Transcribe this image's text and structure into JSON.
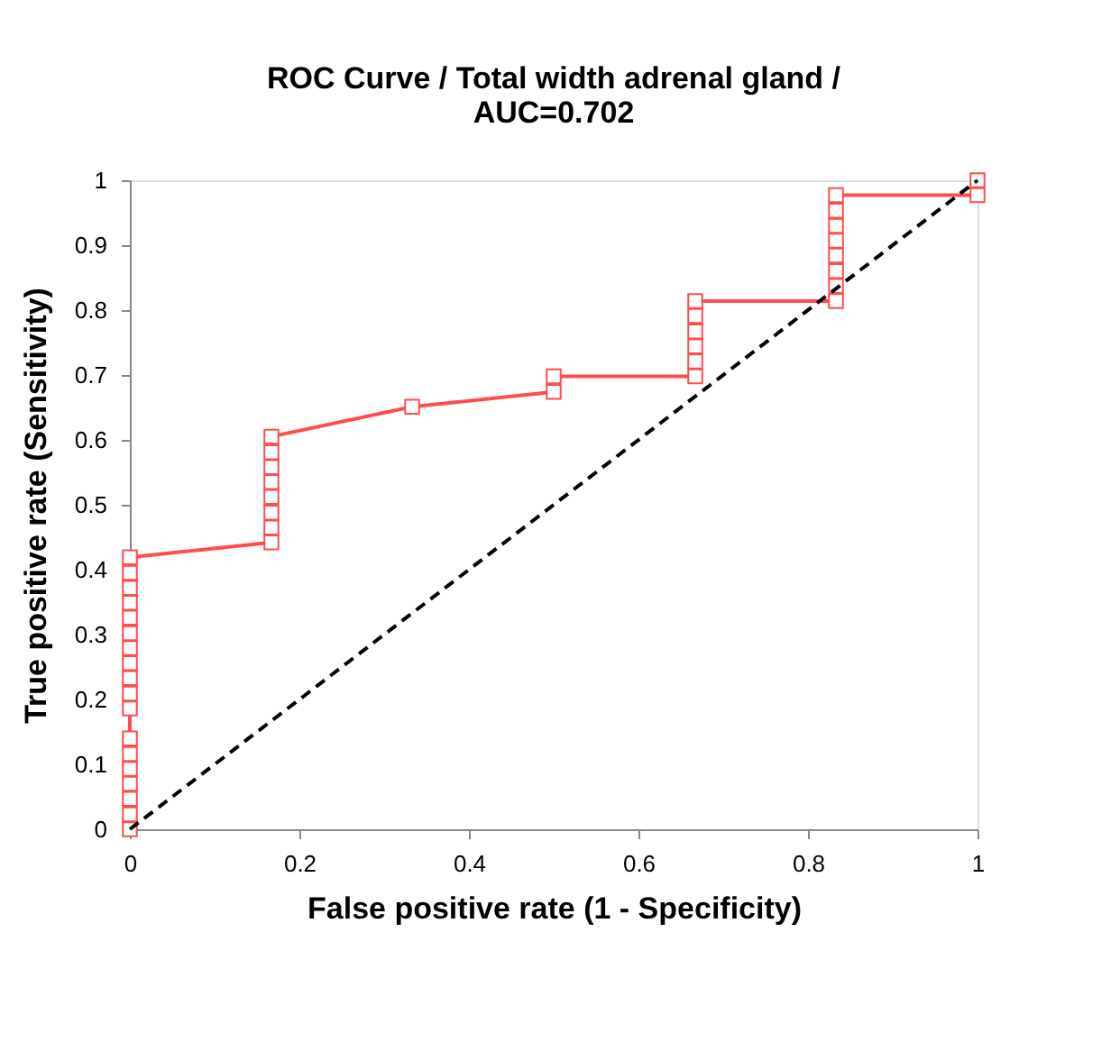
{
  "chart_data": {
    "type": "line",
    "title": [
      "ROC Curve / Total width adrenal gland /",
      "AUC=0.702"
    ],
    "xlabel": "False positive rate (1 - Specificity)",
    "ylabel": "True positive rate (Sensitivity)",
    "xlim": [
      0,
      1
    ],
    "ylim": [
      0,
      1
    ],
    "xticks": [
      0,
      0.2,
      0.4,
      0.6,
      0.8,
      1
    ],
    "yticks": [
      0,
      0.1,
      0.2,
      0.3,
      0.4,
      0.5,
      0.6,
      0.7,
      0.8,
      0.9,
      1
    ],
    "grid": false,
    "series": [
      {
        "color": "#ff4d4d",
        "marker": "square",
        "line_style": "solid",
        "x": [
          0,
          0,
          0,
          0,
          0,
          0,
          0,
          0,
          0,
          0,
          0,
          0,
          0,
          0,
          0,
          0,
          0,
          0,
          0.167,
          0.167,
          0.167,
          0.167,
          0.167,
          0.167,
          0.167,
          0.167,
          0.333,
          0.5,
          0.5,
          0.667,
          0.667,
          0.667,
          0.667,
          0.667,
          0.667,
          0.833,
          0.833,
          0.833,
          0.833,
          0.833,
          0.833,
          0.833,
          0.833,
          1,
          1
        ],
        "values": [
          0,
          0.023,
          0.047,
          0.07,
          0.093,
          0.116,
          0.14,
          0.186,
          0.209,
          0.233,
          0.256,
          0.279,
          0.302,
          0.326,
          0.349,
          0.372,
          0.395,
          0.419,
          0.442,
          0.465,
          0.488,
          0.512,
          0.535,
          0.558,
          0.581,
          0.605,
          0.651,
          0.674,
          0.698,
          0.698,
          0.721,
          0.744,
          0.767,
          0.791,
          0.814,
          0.814,
          0.837,
          0.86,
          0.884,
          0.907,
          0.93,
          0.953,
          0.977,
          0.977,
          1
        ]
      },
      {
        "color": "#000000",
        "marker": "none",
        "line_style": "dashed",
        "x": [
          0,
          1
        ],
        "values": [
          0,
          1
        ]
      }
    ]
  }
}
